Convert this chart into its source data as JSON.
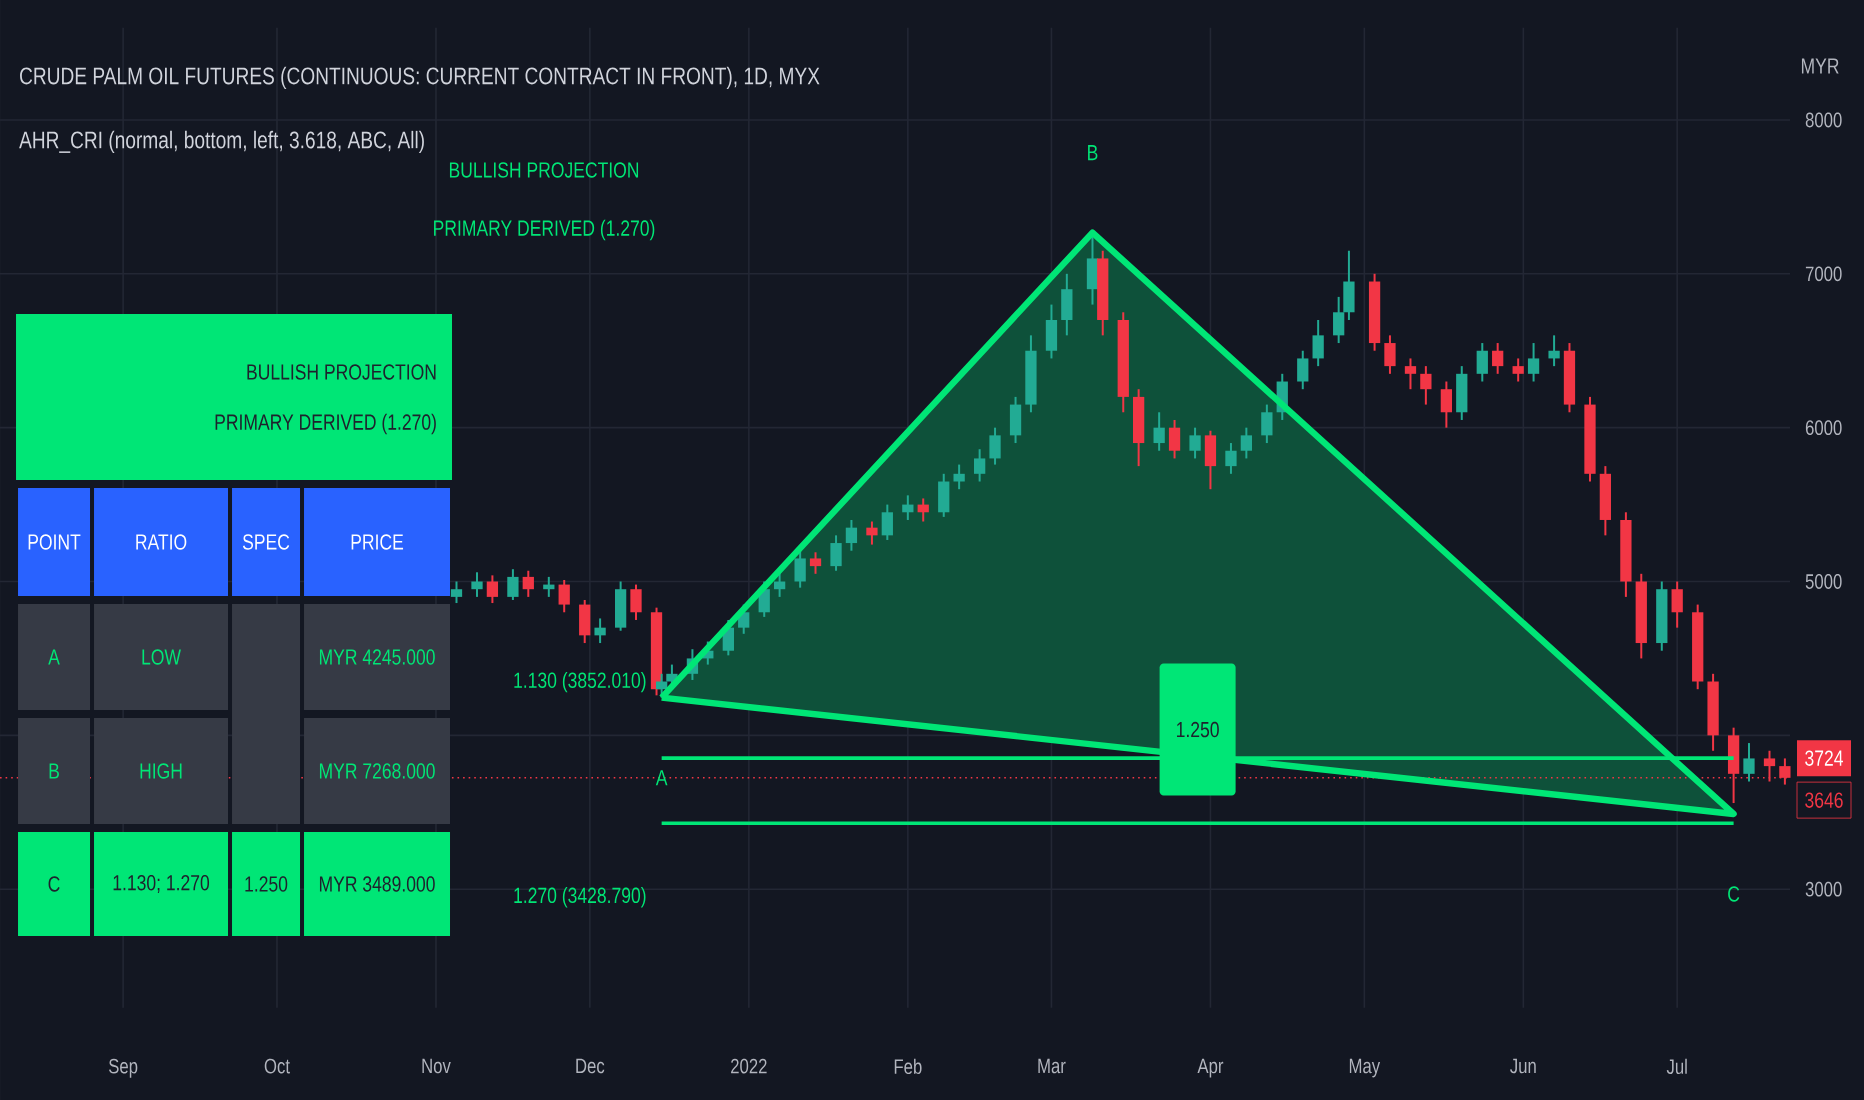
{
  "chart_data": {
    "type": "candlestick",
    "title": "CRUDE PALM OIL FUTURES (CONTINUOUS: CURRENT CONTRACT IN FRONT), 1D, MYX",
    "subtitle": "AHR_CRI (normal, bottom, left, 3.618, ABC, All)",
    "ylabel": "MYR",
    "xlim": [
      "2021-08-08",
      "2022-07-23"
    ],
    "xticks": [
      {
        "value": "2021-09-01",
        "label": "Sep"
      },
      {
        "value": "2021-10-01",
        "label": "Oct"
      },
      {
        "value": "2021-11-01",
        "label": "Nov"
      },
      {
        "value": "2021-12-01",
        "label": "Dec"
      },
      {
        "value": "2022-01-01",
        "label": "2022"
      },
      {
        "value": "2022-02-01",
        "label": "Feb"
      },
      {
        "value": "2022-03-01",
        "label": "Mar"
      },
      {
        "value": "2022-04-01",
        "label": "Apr"
      },
      {
        "value": "2022-05-01",
        "label": "May"
      },
      {
        "value": "2022-06-01",
        "label": "Jun"
      },
      {
        "value": "2022-07-01",
        "label": "Jul"
      }
    ],
    "ylim": [
      2230,
      8600
    ],
    "yticks": [
      3000,
      {
        "value": 4000,
        "label": null
      },
      5000,
      6000,
      7000,
      8000
    ],
    "grid": true,
    "x": [
      "2021-11-05",
      "2021-11-09",
      "2021-11-12",
      "2021-11-16",
      "2021-11-19",
      "2021-11-23",
      "2021-11-26",
      "2021-11-30",
      "2021-12-03",
      "2021-12-07",
      "2021-12-10",
      "2021-12-14",
      "2021-12-15",
      "2021-12-17",
      "2021-12-21",
      "2021-12-24",
      "2021-12-28",
      "2021-12-31",
      "2022-01-04",
      "2022-01-07",
      "2022-01-11",
      "2022-01-14",
      "2022-01-18",
      "2022-01-21",
      "2022-01-25",
      "2022-01-28",
      "2022-02-01",
      "2022-02-04",
      "2022-02-08",
      "2022-02-11",
      "2022-02-15",
      "2022-02-18",
      "2022-02-22",
      "2022-02-25",
      "2022-03-01",
      "2022-03-04",
      "2022-03-09",
      "2022-03-11",
      "2022-03-15",
      "2022-03-18",
      "2022-03-22",
      "2022-03-25",
      "2022-03-29",
      "2022-04-01",
      "2022-04-05",
      "2022-04-08",
      "2022-04-12",
      "2022-04-15",
      "2022-04-19",
      "2022-04-22",
      "2022-04-26",
      "2022-04-28",
      "2022-05-03",
      "2022-05-06",
      "2022-05-10",
      "2022-05-13",
      "2022-05-17",
      "2022-05-20",
      "2022-05-24",
      "2022-05-27",
      "2022-05-31",
      "2022-06-03",
      "2022-06-07",
      "2022-06-10",
      "2022-06-14",
      "2022-06-17",
      "2022-06-21",
      "2022-06-24",
      "2022-06-28",
      "2022-07-01",
      "2022-07-05",
      "2022-07-08",
      "2022-07-12",
      "2022-07-15",
      "2022-07-19",
      "2022-07-22"
    ],
    "ohlc": [
      [
        4900,
        5000,
        4860,
        4950
      ],
      [
        4950,
        5060,
        4900,
        5000
      ],
      [
        5000,
        5040,
        4860,
        4900
      ],
      [
        4900,
        5080,
        4880,
        5030
      ],
      [
        5030,
        5070,
        4900,
        4950
      ],
      [
        4950,
        5030,
        4900,
        4980
      ],
      [
        4980,
        5010,
        4800,
        4850
      ],
      [
        4850,
        4880,
        4600,
        4650
      ],
      [
        4650,
        4760,
        4600,
        4700
      ],
      [
        4700,
        5000,
        4680,
        4950
      ],
      [
        4950,
        4980,
        4750,
        4800
      ],
      [
        4800,
        4830,
        4260,
        4300
      ],
      [
        4300,
        4400,
        4245,
        4350
      ],
      [
        4350,
        4460,
        4300,
        4400
      ],
      [
        4400,
        4560,
        4360,
        4500
      ],
      [
        4500,
        4610,
        4460,
        4550
      ],
      [
        4550,
        4750,
        4520,
        4700
      ],
      [
        4700,
        4850,
        4660,
        4800
      ],
      [
        4800,
        5000,
        4770,
        4950
      ],
      [
        4950,
        5060,
        4900,
        5000
      ],
      [
        5000,
        5200,
        4960,
        5150
      ],
      [
        5150,
        5190,
        5050,
        5100
      ],
      [
        5100,
        5300,
        5070,
        5250
      ],
      [
        5250,
        5400,
        5200,
        5350
      ],
      [
        5350,
        5390,
        5240,
        5300
      ],
      [
        5300,
        5500,
        5270,
        5450
      ],
      [
        5450,
        5560,
        5400,
        5500
      ],
      [
        5500,
        5540,
        5390,
        5450
      ],
      [
        5450,
        5700,
        5420,
        5650
      ],
      [
        5650,
        5760,
        5600,
        5700
      ],
      [
        5700,
        5860,
        5650,
        5800
      ],
      [
        5800,
        6000,
        5760,
        5950
      ],
      [
        5950,
        6200,
        5900,
        6150
      ],
      [
        6150,
        6600,
        6100,
        6500
      ],
      [
        6500,
        6800,
        6450,
        6700
      ],
      [
        6700,
        7000,
        6600,
        6900
      ],
      [
        6900,
        7268,
        6800,
        7100
      ],
      [
        7100,
        7150,
        6600,
        6700
      ],
      [
        6700,
        6750,
        6100,
        6200
      ],
      [
        6200,
        6250,
        5750,
        5900
      ],
      [
        5900,
        6100,
        5850,
        6000
      ],
      [
        6000,
        6050,
        5800,
        5850
      ],
      [
        5850,
        6000,
        5800,
        5950
      ],
      [
        5950,
        5980,
        5600,
        5750
      ],
      [
        5750,
        5900,
        5700,
        5850
      ],
      [
        5850,
        6000,
        5800,
        5950
      ],
      [
        5950,
        6150,
        5900,
        6100
      ],
      [
        6100,
        6350,
        6050,
        6300
      ],
      [
        6300,
        6500,
        6250,
        6450
      ],
      [
        6450,
        6700,
        6400,
        6600
      ],
      [
        6600,
        6850,
        6550,
        6750
      ],
      [
        6750,
        7150,
        6700,
        6950
      ],
      [
        6950,
        7000,
        6500,
        6550
      ],
      [
        6550,
        6600,
        6350,
        6400
      ],
      [
        6400,
        6450,
        6250,
        6350
      ],
      [
        6350,
        6400,
        6150,
        6250
      ],
      [
        6250,
        6300,
        6000,
        6100
      ],
      [
        6100,
        6400,
        6050,
        6350
      ],
      [
        6350,
        6550,
        6300,
        6500
      ],
      [
        6500,
        6550,
        6350,
        6400
      ],
      [
        6400,
        6450,
        6300,
        6350
      ],
      [
        6350,
        6550,
        6300,
        6450
      ],
      [
        6450,
        6600,
        6400,
        6500
      ],
      [
        6500,
        6550,
        6100,
        6150
      ],
      [
        6150,
        6200,
        5650,
        5700
      ],
      [
        5700,
        5750,
        5300,
        5400
      ],
      [
        5400,
        5450,
        4900,
        5000
      ],
      [
        5000,
        5050,
        4500,
        4600
      ],
      [
        4600,
        5000,
        4550,
        4950
      ],
      [
        4950,
        5000,
        4700,
        4800
      ],
      [
        4800,
        4850,
        4300,
        4350
      ],
      [
        4350,
        4400,
        3900,
        4000
      ],
      [
        4000,
        4050,
        3560,
        3750
      ],
      [
        3750,
        3950,
        3700,
        3850
      ],
      [
        3850,
        3900,
        3700,
        3800
      ],
      [
        3800,
        3850,
        3680,
        3724
      ]
    ],
    "colors": [
      "#22ab94",
      "#22ab94",
      "#f23645",
      "#22ab94",
      "#f23645",
      "#22ab94",
      "#f23645",
      "#f23645",
      "#22ab94",
      "#22ab94",
      "#f23645",
      "#f23645",
      "#22ab94",
      "#22ab94",
      "#22ab94",
      "#22ab94",
      "#22ab94",
      "#22ab94",
      "#22ab94",
      "#22ab94",
      "#22ab94",
      "#f23645",
      "#22ab94",
      "#22ab94",
      "#f23645",
      "#22ab94",
      "#22ab94",
      "#f23645",
      "#22ab94",
      "#22ab94",
      "#22ab94",
      "#22ab94",
      "#22ab94",
      "#22ab94",
      "#22ab94",
      "#22ab94",
      "#22ab94",
      "#f23645",
      "#f23645",
      "#f23645",
      "#22ab94",
      "#f23645",
      "#22ab94",
      "#f23645",
      "#22ab94",
      "#22ab94",
      "#22ab94",
      "#22ab94",
      "#22ab94",
      "#22ab94",
      "#22ab94",
      "#22ab94",
      "#f23645",
      "#f23645",
      "#f23645",
      "#f23645",
      "#f23645",
      "#22ab94",
      "#22ab94",
      "#f23645",
      "#f23645",
      "#22ab94",
      "#22ab94",
      "#f23645",
      "#f23645",
      "#f23645",
      "#f23645",
      "#f23645",
      "#22ab94",
      "#f23645",
      "#f23645",
      "#f23645",
      "#f23645",
      "#22ab94",
      "#f23645",
      "#f23645"
    ],
    "series": [
      {
        "type": "area",
        "color": "#00e676",
        "x": [
          "2021-12-15",
          "2022-03-09",
          "2022-07-12",
          "2021-12-15"
        ],
        "values": [
          4245,
          7268,
          3489,
          4245
        ]
      },
      {
        "type": "line",
        "color": "#00e676",
        "x": [
          "2021-12-15",
          "2022-07-12"
        ],
        "values": [
          3852.01,
          3852.01
        ]
      },
      {
        "type": "line",
        "color": "#00e676",
        "x": [
          "2021-12-15",
          "2022-07-12"
        ],
        "values": [
          3428.79,
          3428.79
        ]
      }
    ],
    "ref_lines": [
      {
        "axis": "y",
        "value": 3724,
        "label": "3724",
        "color": "#f23645",
        "line_style": "dotted"
      }
    ],
    "annotations": [
      "BULLISH PROJECTION",
      "PRIMARY DERIVED (1.270)",
      "A",
      "B",
      "C",
      "1.130 (3852.010)",
      "1.270 (3428.790)",
      "1.250",
      "3646",
      "BULLISH PROJECTION",
      "PRIMARY DERIVED (1.270)",
      "POINT",
      "RATIO",
      "SPEC",
      "PRICE",
      "A",
      "LOW",
      "MYR 4245.000",
      "B",
      "HIGH",
      "MYR 7268.000",
      "C",
      "1.130; 1.270",
      "1.250",
      "MYR 3489.000"
    ]
  }
}
